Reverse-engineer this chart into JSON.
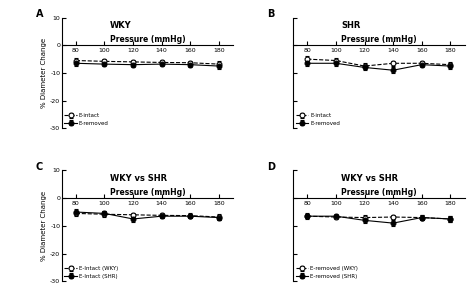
{
  "pressures": [
    80,
    100,
    120,
    140,
    160,
    180
  ],
  "panels": [
    {
      "label": "A",
      "title": "WKY",
      "series": [
        {
          "name": "E-intact",
          "marker": "open_circle",
          "linestyle": "dashed",
          "values": [
            -5.5,
            -5.8,
            -6.0,
            -6.2,
            -6.3,
            -6.8
          ],
          "errors": [
            1.0,
            1.0,
            0.8,
            0.8,
            0.8,
            1.0
          ]
        },
        {
          "name": "E-removed",
          "marker": "filled_circle",
          "linestyle": "solid",
          "values": [
            -6.5,
            -6.8,
            -7.0,
            -6.8,
            -7.0,
            -7.5
          ],
          "errors": [
            0.8,
            0.8,
            0.8,
            0.8,
            0.8,
            1.0
          ]
        }
      ],
      "legend": [
        "E-intact",
        "E-removed"
      ]
    },
    {
      "label": "B",
      "title": "SHR",
      "series": [
        {
          "name": "E-intact",
          "marker": "open_circle",
          "linestyle": "dashed",
          "values": [
            -5.0,
            -5.5,
            -7.5,
            -6.5,
            -6.5,
            -7.0
          ],
          "errors": [
            1.2,
            1.0,
            1.0,
            0.8,
            0.8,
            1.0
          ]
        },
        {
          "name": "E-removed",
          "marker": "filled_circle",
          "linestyle": "solid",
          "values": [
            -6.5,
            -6.5,
            -8.0,
            -9.0,
            -7.0,
            -7.5
          ],
          "errors": [
            1.0,
            0.8,
            1.0,
            1.0,
            0.8,
            1.0
          ]
        }
      ],
      "legend": [
        "E-intact",
        "E-removed"
      ]
    },
    {
      "label": "C",
      "title": "WKY vs SHR",
      "series": [
        {
          "name": "E-Intact (WKY)",
          "marker": "open_circle",
          "linestyle": "dashed",
          "values": [
            -5.5,
            -5.8,
            -6.0,
            -6.2,
            -6.3,
            -6.8
          ],
          "errors": [
            1.0,
            1.0,
            0.8,
            0.8,
            0.8,
            1.0
          ]
        },
        {
          "name": "E-Intact (SHR)",
          "marker": "filled_circle",
          "linestyle": "solid",
          "values": [
            -5.0,
            -5.5,
            -7.5,
            -6.5,
            -6.5,
            -7.0
          ],
          "errors": [
            1.2,
            1.0,
            1.0,
            0.8,
            0.8,
            1.0
          ]
        }
      ],
      "legend": [
        "E-Intact (WKY)",
        "E-Intact (SHR)"
      ]
    },
    {
      "label": "D",
      "title": "WKY vs SHR",
      "series": [
        {
          "name": "E-removed (WKY)",
          "marker": "open_circle",
          "linestyle": "dashed",
          "values": [
            -6.5,
            -6.8,
            -7.0,
            -6.8,
            -7.0,
            -7.5
          ],
          "errors": [
            0.8,
            0.8,
            0.8,
            0.8,
            0.8,
            1.0
          ]
        },
        {
          "name": "E-removed (SHR)",
          "marker": "filled_circle",
          "linestyle": "solid",
          "values": [
            -6.5,
            -6.5,
            -8.0,
            -9.0,
            -7.0,
            -7.5
          ],
          "errors": [
            1.0,
            0.8,
            1.0,
            1.0,
            0.8,
            1.0
          ]
        }
      ],
      "legend": [
        "E-removed (WKY)",
        "E-removed (SHR)"
      ]
    }
  ],
  "ylim": [
    -30,
    10
  ],
  "yticks": [
    10,
    0,
    -10,
    -20,
    -30
  ],
  "ylabel": "% Diameter Change",
  "xlabel_text": "Pressure (mmHg)",
  "background_color": "#ffffff",
  "line_color": "#000000"
}
